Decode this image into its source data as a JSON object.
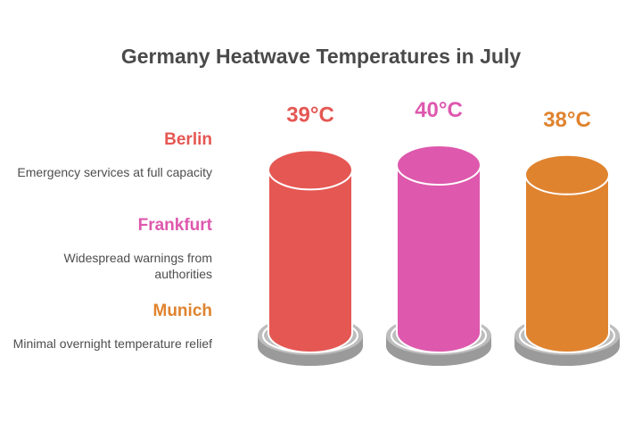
{
  "title": "Germany Heatwave Temperatures in July",
  "items": [
    {
      "city": "Berlin",
      "temp": "39°C",
      "desc": "Emergency services at full capacity",
      "color": "#e55753"
    },
    {
      "city": "Frankfurt",
      "temp": "40°C",
      "desc": "Widespread warnings from authorities",
      "color": "#de58ad"
    },
    {
      "city": "Munich",
      "temp": "38°C",
      "desc": "Minimal overnight temperature relief",
      "color": "#e0832f"
    }
  ],
  "chart_data": {
    "type": "bar",
    "title": "Germany Heatwave Temperatures in July",
    "categories": [
      "Berlin",
      "Frankfurt",
      "Munich"
    ],
    "values": [
      39,
      40,
      38
    ],
    "unit": "°C",
    "data_labels": [
      "39°C",
      "40°C",
      "38°C"
    ],
    "colors": [
      "#e55753",
      "#de58ad",
      "#e0832f"
    ]
  }
}
